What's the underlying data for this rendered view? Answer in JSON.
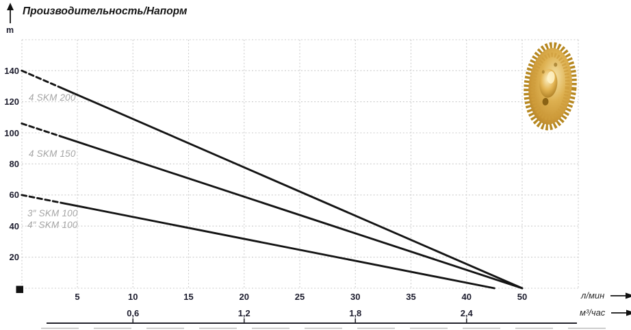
{
  "title": "Производительность/Напорм",
  "y_axis": {
    "unit": "m",
    "tick_labels": [
      "140",
      "120",
      "100",
      "80",
      "60",
      "40",
      "20"
    ]
  },
  "x_axis_primary": {
    "unit": "л/мин",
    "tick_labels": [
      "5",
      "10",
      "15",
      "20",
      "25",
      "30",
      "35",
      "40",
      "50"
    ]
  },
  "x_axis_secondary": {
    "unit": "м³/час",
    "tick_labels": [
      "0,6",
      "1,2",
      "1,8",
      "2,4"
    ]
  },
  "curve_labels": [
    "4 SKM 200",
    "4 SKM 150",
    "3″ SKM 100",
    "4″ SKM 100"
  ],
  "icons": {
    "y_axis_arrow": "up-arrow",
    "x_axis_primary_arrow": "right-arrow",
    "x_axis_secondary_arrow": "right-arrow",
    "origin_marker": "black-square",
    "impeller_image": "brass-pump-impeller-photo"
  },
  "colors": {
    "curve": "#141414",
    "grid": "#cbcbcb",
    "axis_text": "#1d1d2e",
    "curve_label": "#a5a5a5",
    "secondary_axis_line": "#23232b",
    "impeller_gold": "#d9a93f"
  },
  "chart_data": {
    "type": "line",
    "title": "Производительность/Напорм",
    "ylabel": "m",
    "xlabel_primary": "л/мин",
    "xlabel_secondary": "м³/час",
    "ylim": [
      0,
      160
    ],
    "xlim": [
      0,
      55
    ],
    "grid": true,
    "y_gridline_step_m": 20,
    "x_gridline_step_lpm": 5,
    "legend_position": "labels-on-plot",
    "secondary_tick_alignment": {
      "0,6": 10,
      "1,2": 20,
      "1,8": 30,
      "2,4": 40
    },
    "series": [
      {
        "name": "4 SKM 200",
        "points_lpm_m": [
          [
            0,
            140
          ],
          [
            50,
            0
          ]
        ],
        "dashed_until_lpm": 3.5
      },
      {
        "name": "4 SKM 150",
        "points_lpm_m": [
          [
            0,
            106
          ],
          [
            50,
            0
          ]
        ],
        "dashed_until_lpm": 3.5
      },
      {
        "name": "3″/4″ SKM 100",
        "points_lpm_m": [
          [
            0,
            60
          ],
          [
            45,
            0
          ]
        ],
        "dashed_until_lpm": 3.5
      }
    ]
  }
}
